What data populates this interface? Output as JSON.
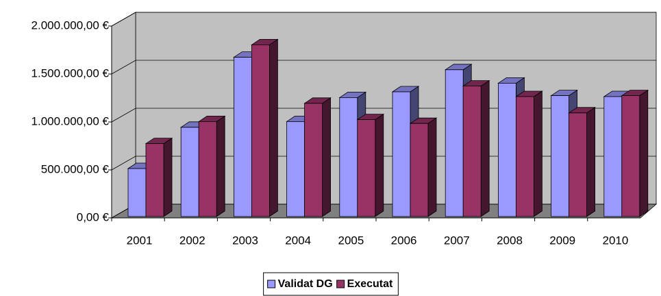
{
  "chart_data": {
    "type": "bar3d",
    "categories": [
      "2001",
      "2002",
      "2003",
      "2004",
      "2005",
      "2006",
      "2007",
      "2008",
      "2009",
      "2010"
    ],
    "series": [
      {
        "name": "Validat DG",
        "color": "#9999ff",
        "values": [
          500000,
          930000,
          1660000,
          990000,
          1240000,
          1300000,
          1530000,
          1390000,
          1260000,
          1250000
        ]
      },
      {
        "name": "Executat",
        "color": "#993366",
        "values": [
          760000,
          990000,
          1790000,
          1180000,
          1010000,
          970000,
          1360000,
          1250000,
          1080000,
          1260000
        ]
      }
    ],
    "ylim": [
      0,
      2000000
    ],
    "yticks": [
      {
        "value": 0,
        "label": "0,00 €"
      },
      {
        "value": 500000,
        "label": "500.000,00 €"
      },
      {
        "value": 1000000,
        "label": "1.000.000,00 €"
      },
      {
        "value": 1500000,
        "label": "1.500.000,00 €"
      },
      {
        "value": 2000000,
        "label": "2.000.000,00 €"
      }
    ],
    "grid": true,
    "legend": "bottom"
  }
}
